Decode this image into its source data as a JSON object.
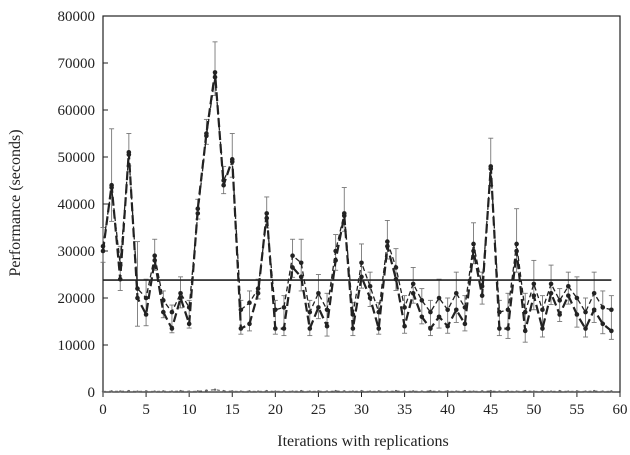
{
  "chart_data": {
    "type": "line",
    "xlabel": "Iterations with replications",
    "ylabel": "Performance (seconds)",
    "xlim": [
      0,
      60
    ],
    "ylim": [
      0,
      80000
    ],
    "x_ticks": [
      "0",
      "5",
      "10",
      "15",
      "20",
      "25",
      "30",
      "35",
      "40",
      "45",
      "50",
      "55",
      "60"
    ],
    "y_ticks": [
      "0",
      "10000",
      "20000",
      "30000",
      "40000",
      "50000",
      "60000",
      "70000",
      "80000"
    ],
    "grid": false,
    "legend": "none",
    "x": [
      0,
      1,
      2,
      3,
      4,
      5,
      6,
      7,
      8,
      9,
      10,
      11,
      12,
      13,
      14,
      15,
      16,
      17,
      18,
      19,
      20,
      21,
      22,
      23,
      24,
      25,
      26,
      27,
      28,
      29,
      30,
      31,
      32,
      33,
      34,
      35,
      36,
      37,
      38,
      39,
      40,
      41,
      42,
      43,
      44,
      45,
      46,
      47,
      48,
      49,
      50,
      51,
      52,
      53,
      54,
      55,
      56,
      57,
      58,
      59
    ],
    "series": [
      {
        "style": "long-dash",
        "color": "#222222",
        "values": [
          30000,
          44000,
          24000,
          51000,
          20000,
          16500,
          28000,
          17000,
          13500,
          20000,
          14500,
          39000,
          55000,
          68000,
          44000,
          49500,
          13500,
          14500,
          21000,
          38000,
          13500,
          13500,
          26500,
          24500,
          13500,
          18000,
          14000,
          28000,
          37500,
          13500,
          24500,
          20000,
          13500,
          31000,
          24000,
          14000,
          21000,
          16000,
          13500,
          16000,
          14000,
          17500,
          14500,
          30000,
          20500,
          48000,
          13500,
          13500,
          30000,
          13000,
          20500,
          13500,
          21000,
          16500,
          20500,
          16500,
          13500,
          17500,
          14500,
          13000
        ]
      },
      {
        "style": "medium-dash",
        "color": "#222222",
        "values": [
          31000,
          43500,
          27000,
          50500,
          22000,
          20000,
          29000,
          19500,
          17000,
          21000,
          18000,
          38000,
          54500,
          67000,
          45000,
          49000,
          17500,
          19000,
          22000,
          37000,
          17500,
          18000,
          29000,
          27500,
          17000,
          21000,
          17500,
          30000,
          38000,
          16500,
          27500,
          22500,
          17000,
          32000,
          26500,
          18000,
          23000,
          19500,
          17000,
          20000,
          17500,
          21000,
          18000,
          31500,
          22500,
          47500,
          17000,
          17500,
          31500,
          17000,
          23000,
          17500,
          23000,
          19500,
          22500,
          20000,
          17000,
          21000,
          18000,
          17500
        ]
      },
      {
        "style": "solid",
        "color": "#222222",
        "values": [
          23800,
          23800,
          23800,
          23800,
          23800,
          23800,
          23800,
          23800,
          23800,
          23800,
          23800,
          23800,
          23800,
          23800,
          23800,
          23800,
          23800,
          23800,
          23800,
          23800,
          23800,
          23800,
          23800,
          23800,
          23800,
          23800,
          23800,
          23800,
          23800,
          23800,
          23800,
          23800,
          23800,
          23800,
          23800,
          23800,
          23800,
          23800,
          23800,
          23800,
          23800,
          23800,
          23800,
          23800,
          23800,
          23800,
          23800,
          23800,
          23800,
          23800,
          23800,
          23800,
          23800,
          23800,
          23800,
          23800,
          23800,
          23800,
          23800,
          23800
        ]
      },
      {
        "style": "short-dash",
        "color": "#666666",
        "values": [
          100,
          150,
          120,
          200,
          100,
          150,
          100,
          150,
          100,
          200,
          100,
          150,
          300,
          500,
          200,
          150,
          100,
          150,
          100,
          200,
          100,
          150,
          100,
          200,
          100,
          150,
          100,
          200,
          150,
          100,
          200,
          100,
          150,
          100,
          200,
          100,
          150,
          100,
          200,
          100,
          150,
          100,
          200,
          100,
          150,
          200,
          100,
          150,
          100,
          200,
          100,
          150,
          100,
          200,
          100,
          150,
          100,
          200,
          100,
          150
        ]
      }
    ],
    "error_bars": [
      4000,
      12000,
      4000,
      4000,
      10000,
      4000,
      3500,
      2000,
      1500,
      3500,
      1500,
      2000,
      3000,
      6500,
      3000,
      5500,
      2000,
      2500,
      2000,
      3500,
      2000,
      2500,
      3500,
      5000,
      2500,
      4000,
      3500,
      3500,
      5500,
      2500,
      4000,
      3000,
      2000,
      4500,
      4000,
      2500,
      3500,
      2500,
      2500,
      4000,
      2500,
      4500,
      2500,
      4500,
      3000,
      6000,
      2500,
      3500,
      7500,
      4000,
      5000,
      3000,
      4000,
      2500,
      3000,
      4500,
      3000,
      4500,
      3500,
      3000
    ]
  }
}
